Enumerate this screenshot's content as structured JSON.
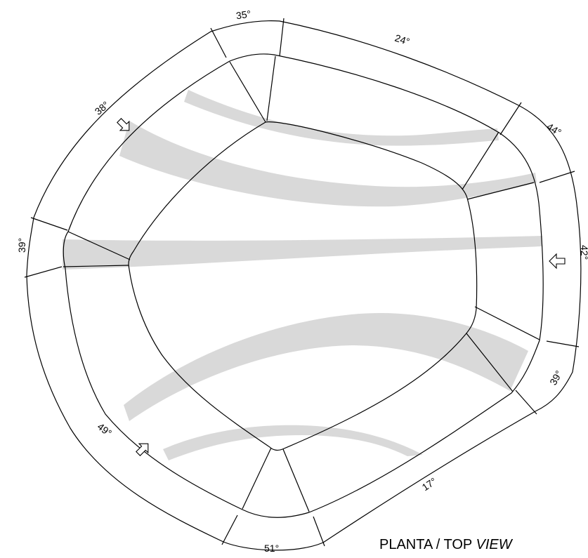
{
  "angles": [
    {
      "id": "angle-35",
      "label": "35°"
    },
    {
      "id": "angle-24",
      "label": "24°"
    },
    {
      "id": "angle-44",
      "label": "44°"
    },
    {
      "id": "angle-38",
      "label": "38°"
    },
    {
      "id": "angle-39-left",
      "label": "39°"
    },
    {
      "id": "angle-39-right",
      "label": "39°"
    },
    {
      "id": "angle-49",
      "label": "49°"
    },
    {
      "id": "angle-51",
      "label": "51°"
    },
    {
      "id": "angle-17",
      "label": "17°"
    },
    {
      "id": "angle-42",
      "label": "42°"
    }
  ],
  "caption": {
    "main": "PLANTA / TOP ",
    "italic": "VIEW"
  }
}
